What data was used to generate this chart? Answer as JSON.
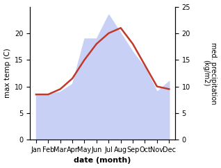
{
  "months": [
    "Jan",
    "Feb",
    "Mar",
    "Apr",
    "May",
    "Jun",
    "Jul",
    "Aug",
    "Sep",
    "Oct",
    "Nov",
    "Dec"
  ],
  "month_indices": [
    1,
    2,
    3,
    4,
    5,
    6,
    7,
    8,
    9,
    10,
    11,
    12
  ],
  "max_temp": [
    8.5,
    8.5,
    9.5,
    11.5,
    15.0,
    18.0,
    20.0,
    21.0,
    18.0,
    14.0,
    10.0,
    9.5
  ],
  "precipitation": [
    8.5,
    8.5,
    9.0,
    10.5,
    19.0,
    19.0,
    23.5,
    20.0,
    16.5,
    13.5,
    9.0,
    11.0
  ],
  "temp_color": "#c0392b",
  "precip_fill_color": "#c8d0f5",
  "left_ylim": [
    0,
    25
  ],
  "right_ylim": [
    0,
    25
  ],
  "left_yticks": [
    0,
    5,
    10,
    15,
    20
  ],
  "right_yticks": [
    0,
    5,
    10,
    15,
    20,
    25
  ],
  "xlabel": "date (month)",
  "ylabel_left": "max temp (C)",
  "ylabel_right": "med. precipitation\n(kg/m2)",
  "xlim": [
    0.5,
    12.5
  ],
  "fig_width": 3.18,
  "fig_height": 2.42,
  "dpi": 100
}
